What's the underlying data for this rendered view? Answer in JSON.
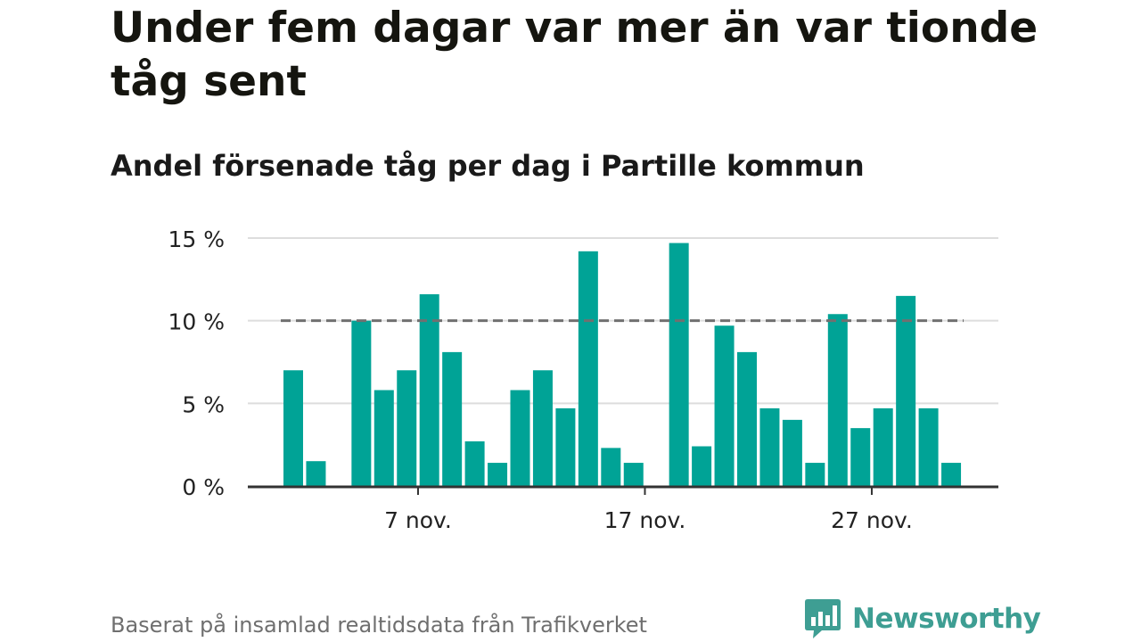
{
  "title": "Under fem dagar var mer än var tionde tåg sent",
  "subtitle": "Andel försenade tåg per dag i Partille kommun",
  "footer": "Baserat på insamlad realtidsdata från Trafikverket",
  "brand": {
    "name": "Newsworthy",
    "icon": "chart-speech-bubble-icon"
  },
  "colors": {
    "bar": "#00a396",
    "reference_line": "#707070",
    "grid": "#dddddd",
    "axis": "#333333",
    "brand": "#3e9e93"
  },
  "chart_data": {
    "type": "bar",
    "title": "Under fem dagar var mer än var tionde tåg sent",
    "subtitle": "Andel försenade tåg per dag i Partille kommun",
    "xlabel": "",
    "ylabel": "",
    "ylim": [
      0,
      15
    ],
    "yticks": [
      0,
      5,
      10,
      15
    ],
    "ytick_labels": [
      "0 %",
      "5 %",
      "10 %",
      "15 %"
    ],
    "xtick_labels": [
      "7 nov.",
      "17 nov.",
      "27 nov."
    ],
    "xtick_days": [
      7,
      17,
      27
    ],
    "grid": true,
    "categories": [
      "1 nov.",
      "2 nov.",
      "3 nov.",
      "4 nov.",
      "5 nov.",
      "6 nov.",
      "7 nov.",
      "8 nov.",
      "9 nov.",
      "10 nov.",
      "11 nov.",
      "12 nov.",
      "13 nov.",
      "14 nov.",
      "15 nov.",
      "16 nov.",
      "17 nov.",
      "18 nov.",
      "19 nov.",
      "20 nov.",
      "21 nov.",
      "22 nov.",
      "23 nov.",
      "24 nov.",
      "25 nov.",
      "26 nov.",
      "27 nov.",
      "28 nov.",
      "29 nov.",
      "30 nov."
    ],
    "values": [
      7.0,
      1.5,
      null,
      10.0,
      5.8,
      7.0,
      11.6,
      8.1,
      2.7,
      1.4,
      5.8,
      7.0,
      4.7,
      14.2,
      2.3,
      1.4,
      null,
      14.7,
      2.4,
      9.7,
      8.1,
      4.7,
      4.0,
      1.4,
      10.4,
      3.5,
      4.7,
      11.5,
      4.7,
      1.4
    ],
    "reference_line": {
      "value": 10,
      "style": "dashed"
    }
  }
}
